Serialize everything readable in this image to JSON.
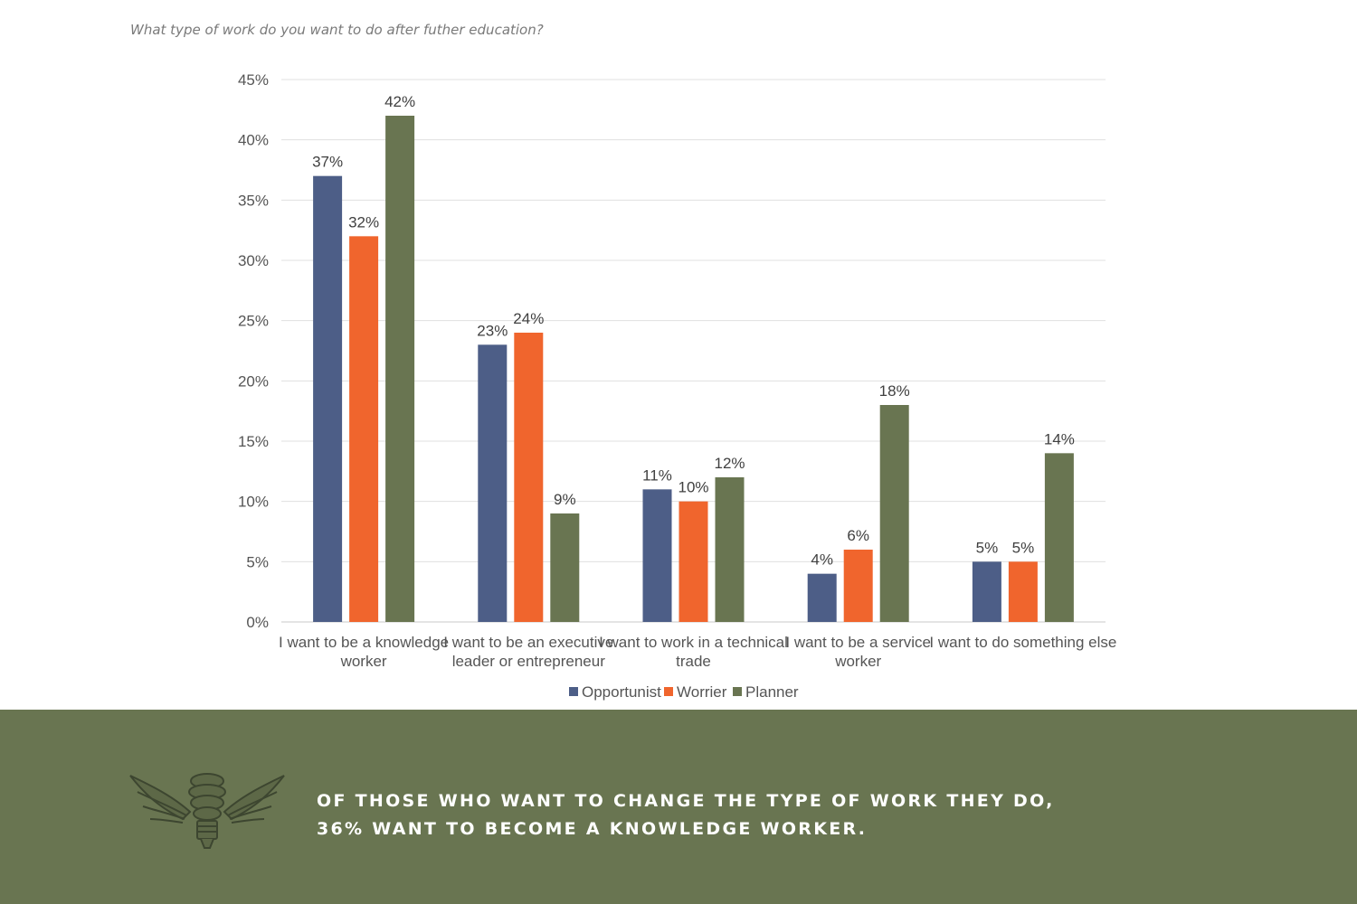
{
  "question": "What type of work do you want to do after futher education?",
  "chart_data": {
    "type": "bar",
    "title": "",
    "xlabel": "",
    "ylabel": "",
    "ylim": [
      0,
      45
    ],
    "yticks": [
      "0%",
      "5%",
      "10%",
      "15%",
      "20%",
      "25%",
      "30%",
      "35%",
      "40%",
      "45%"
    ],
    "grid": true,
    "legend_position": "bottom",
    "categories": [
      [
        "I want to be a knowledge",
        "worker"
      ],
      [
        "I want to be an executive",
        "leader or entrepreneur"
      ],
      [
        "I want to work in a technical",
        "trade"
      ],
      [
        "I want to be a service",
        "worker"
      ],
      [
        "I want to do something else"
      ]
    ],
    "series": [
      {
        "name": "Opportunist",
        "color": "#4d5e87",
        "values": [
          37,
          23,
          11,
          4,
          5
        ],
        "labels": [
          "37%",
          "23%",
          "11%",
          "4%",
          "5%"
        ]
      },
      {
        "name": "Worrier",
        "color": "#f0652d",
        "values": [
          32,
          24,
          10,
          6,
          5
        ],
        "labels": [
          "32%",
          "24%",
          "10%",
          "6%",
          "5%"
        ]
      },
      {
        "name": "Planner",
        "color": "#697551",
        "values": [
          42,
          9,
          12,
          18,
          14
        ],
        "labels": [
          "42%",
          "9%",
          "12%",
          "18%",
          "14%"
        ]
      }
    ]
  },
  "footer": {
    "background_color": "#697551",
    "emblem_icon": "winged-lightbulb-icon",
    "callout_lines": [
      "Of those who want to change the type of work they do,",
      "36% want to become a knowledge worker."
    ]
  }
}
